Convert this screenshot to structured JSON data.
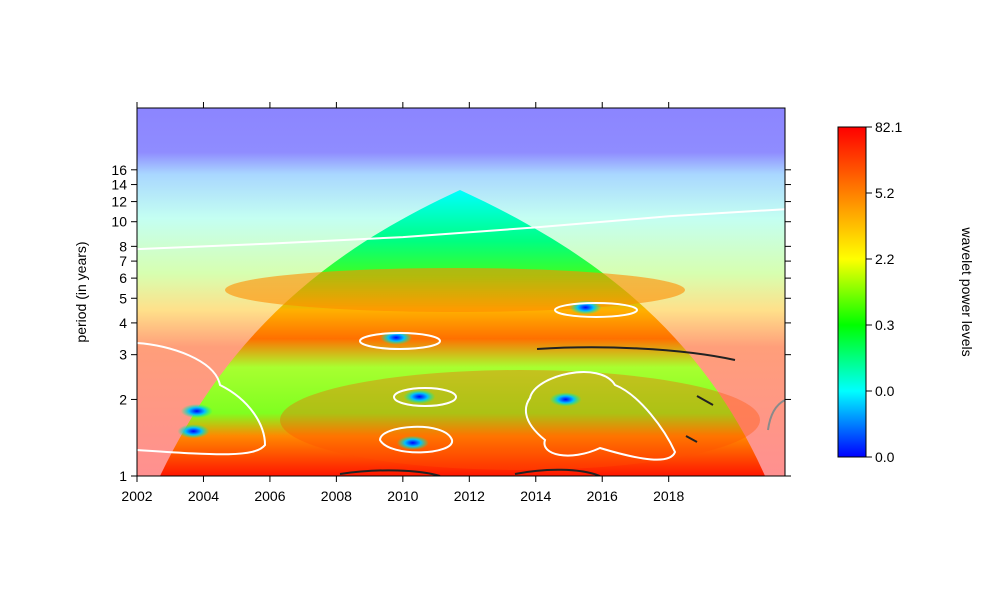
{
  "chart_data": {
    "type": "heatmap",
    "title": "",
    "xlabel": "",
    "ylabel": "period (in years)",
    "xlim": [
      2002,
      2021.5
    ],
    "ylim": [
      1,
      28
    ],
    "y_scale": "log",
    "x_ticks": [
      2002,
      2004,
      2006,
      2008,
      2010,
      2012,
      2014,
      2016,
      2018
    ],
    "y_ticks": [
      1,
      2,
      3,
      4,
      5,
      6,
      7,
      8,
      10,
      12,
      14,
      16
    ],
    "colorbar": {
      "label": "wavelet power levels",
      "tick_labels": [
        "0.0",
        "0.0",
        "0.3",
        "2.2",
        "5.2",
        "82.1"
      ],
      "colors": [
        "#0000ff",
        "#00ffff",
        "#00ff00",
        "#ffff00",
        "#ff8000",
        "#ff0000"
      ],
      "placement": "right"
    },
    "high_power_regions": [
      {
        "x": 2009.8,
        "period": 3.5,
        "level": "low"
      },
      {
        "x": 2015.5,
        "period": 4.6,
        "level": "low"
      },
      {
        "x": 2010.5,
        "period": 2.05,
        "level": "low"
      },
      {
        "x": 2010.3,
        "period": 1.35,
        "level": "low"
      },
      {
        "x": 2014.9,
        "period": 2.0,
        "level": "low"
      },
      {
        "x": 2003.8,
        "period": 1.8,
        "level": "low"
      },
      {
        "x": 2003.7,
        "period": 1.5,
        "level": "low"
      }
    ],
    "cone_of_influence": {
      "peak_x": 2011.6,
      "peak_period": 14,
      "base_x": [
        2003.2,
        2020.2
      ]
    },
    "ridge_line": {
      "x": [
        2002,
        2006,
        2010,
        2014,
        2018,
        2021.5
      ],
      "period": [
        7.8,
        8.2,
        8.7,
        9.5,
        10.5,
        11.2
      ]
    }
  }
}
